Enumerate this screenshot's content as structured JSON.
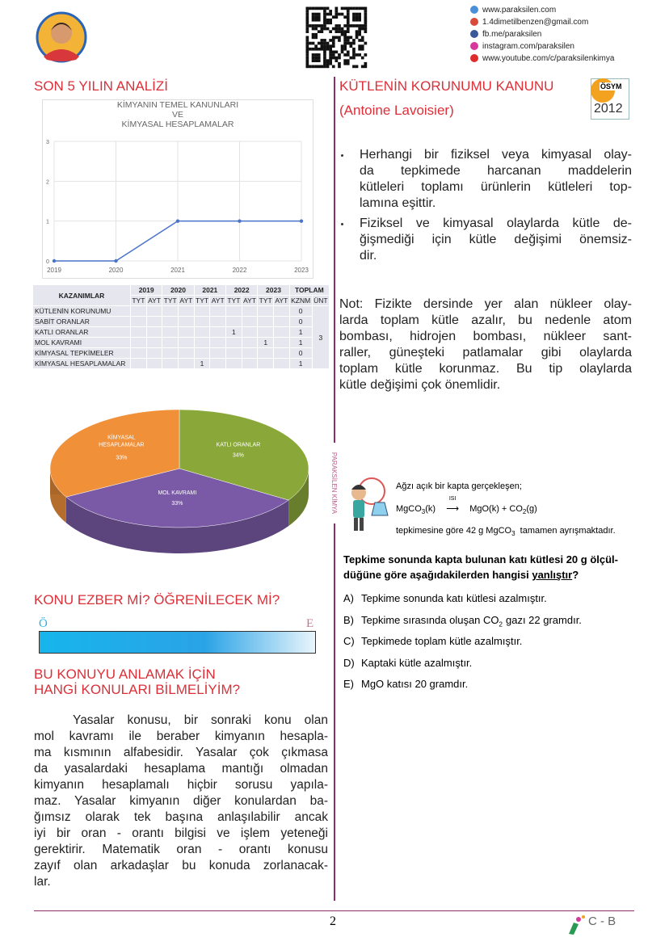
{
  "header": {
    "links": [
      "www.paraksilen.com",
      "1.4dimetilbenzen@gmail.com",
      "fb.me/paraksilen",
      "instagram.com/paraksilen",
      "www.youtube.com/c/paraksilenkimya"
    ]
  },
  "analysis": {
    "title": "SON 5 YILIN ANALİZİ",
    "line_chart": {
      "type": "line",
      "title": [
        "KİMYANIN TEMEL KANUNLARI",
        "VE",
        "KİMYASAL HESAPLAMALAR"
      ],
      "categories": [
        "2019",
        "2020",
        "2021",
        "2022",
        "2023"
      ],
      "values": [
        0,
        0,
        1,
        1,
        1
      ],
      "color": "#4a74c9",
      "ylim": [
        0,
        3
      ],
      "yticks": [
        0,
        1,
        2,
        3
      ],
      "grid": true
    },
    "table": {
      "header": "KAZANIMLAR",
      "years": [
        "2019",
        "2020",
        "2021",
        "2022",
        "2023"
      ],
      "sub": [
        "TYT",
        "AYT"
      ],
      "total": "TOPLAM",
      "total_sub": [
        "KZNM",
        "ÜNT"
      ],
      "rows": [
        {
          "name": "KÜTLENİN KORUNUMU",
          "cells": [
            null,
            null,
            null,
            null,
            null,
            null,
            null,
            null,
            null,
            null
          ],
          "kznm": 0
        },
        {
          "name": "SABİT ORANLAR",
          "cells": [
            null,
            null,
            null,
            null,
            null,
            null,
            null,
            null,
            null,
            null
          ],
          "kznm": 0
        },
        {
          "name": "KATLI ORANLAR",
          "cells": [
            null,
            null,
            null,
            null,
            null,
            null,
            1,
            null,
            null,
            null
          ],
          "kznm": 1
        },
        {
          "name": "MOL KAVRAMI",
          "cells": [
            null,
            null,
            null,
            null,
            null,
            null,
            null,
            null,
            1,
            null
          ],
          "kznm": 1
        },
        {
          "name": "KİMYASAL TEPKİMELER",
          "cells": [
            null,
            null,
            null,
            null,
            null,
            null,
            null,
            null,
            null,
            null
          ],
          "kznm": 0
        },
        {
          "name": "KİMYASAL HESAPLAMALAR",
          "cells": [
            null,
            null,
            null,
            null,
            1,
            null,
            null,
            null,
            null,
            null
          ],
          "kznm": 1
        }
      ],
      "unit_total": 3
    },
    "pie_chart": {
      "type": "pie",
      "categories": [
        "KATLI ORANLAR",
        "MOL KAVRAMI",
        "KİMYASAL HESAPLAMALAR"
      ],
      "values": [
        34,
        33,
        33
      ],
      "value_labels": [
        "34%",
        "33%",
        "33%"
      ],
      "colors": [
        "#8aa83a",
        "#7a5aa6",
        "#f0913a"
      ]
    }
  },
  "memorize": {
    "title": "KONU EZBER Mİ? ÖĞRENİLECEK Mİ?",
    "left": "Ö",
    "right": "E"
  },
  "prereq": {
    "title": [
      "BU KONUYU ANLAMAK İÇİN",
      "HANGİ KONULARI BİLMELİYİM?"
    ],
    "lines": [
      "Yasalar konusu, bir sonraki konu olan",
      "mol kavramı ile beraber kimyanın hesapla-",
      "ma kısmının alfabesidir. Yasalar çok çıkmasa",
      "da yasalardaki hesaplama mantığı olmadan",
      "kimyanın hesaplamalı hiçbir sorusu yapıla-",
      "maz. Yasalar kimyanın diğer konulardan ba-",
      "ğımsız olarak tek başına anlaşılabilir ancak",
      "iyi bir oran - orantı bilgisi ve işlem yeteneği",
      "gerektirir. Matematik oran - orantı konusu",
      "zayıf olan arkadaşlar bu konuda zorlanacak-",
      "lar."
    ]
  },
  "law": {
    "title": "KÜTLENİN KORUNUMU KANUNU",
    "subtitle": "(Antoine Lavoisier)",
    "badge": {
      "org": "ÖSYM",
      "year": "2012"
    },
    "bullets": [
      [
        "Herhangi bir fiziksel veya kimyasal olay-",
        "da tepkimede harcanan maddelerin",
        "kütleleri toplamı ürünlerin kütleleri top-",
        "lamına eşittir."
      ],
      [
        "Fiziksel ve kimyasal olaylarda kütle de-",
        "ğişmediği için kütle değişimi önemsiz-",
        "dir."
      ]
    ],
    "note": [
      "Not: Fizikte dersinde yer alan nükleer olay-",
      "larda toplam kütle azalır, bu nedenle atom",
      "bombası, hidrojen bombası, nükleer sant-",
      "raller, güneşteki patlamalar gibi olaylarda",
      "toplam kütle korunmaz. Bu tip olaylarda",
      "kütle değişimi çok önemlidir."
    ]
  },
  "side_label": "PARAKSİLEN KİMYA",
  "question": {
    "intro": "Ağzı açık bir kapta gerçekleşen;",
    "reaction": {
      "reactant": "MgCO",
      "reactant_sub": "3",
      "reactant_state": "(k)",
      "arrow": "ISI",
      "product1": "MgO(k) +",
      "product2": "CO",
      "product2_sub": "2",
      "product2_state": "(g)"
    },
    "given": {
      "before": "tepkimesine göre 42 g MgCO",
      "sub": "3",
      "after": "tamamen ayrışmaktadır."
    },
    "stem": {
      "line1": "Tepkime sonunda kapta bulunan katı kütlesi 20 g ölçül-",
      "line2": "düğüne göre aşağıdakilerden hangisi",
      "emph": "yanlıştır",
      "end": "?"
    },
    "options": [
      {
        "letter": "A)",
        "text": "Tepkime sonunda katı kütlesi azalmıştır."
      },
      {
        "letter": "B)",
        "text": "Tepkime sırasında oluşan CO",
        "sub": "2",
        "after": "gazı 22 gramdır."
      },
      {
        "letter": "C)",
        "text": "Tepkimede toplam kütle azalmıştır."
      },
      {
        "letter": "D)",
        "text": "Kaptaki kütle azalmıştır."
      },
      {
        "letter": "E)",
        "text": "MgO katısı 20 gramdır."
      }
    ]
  },
  "footer": {
    "page": "2",
    "code": "C - B"
  }
}
